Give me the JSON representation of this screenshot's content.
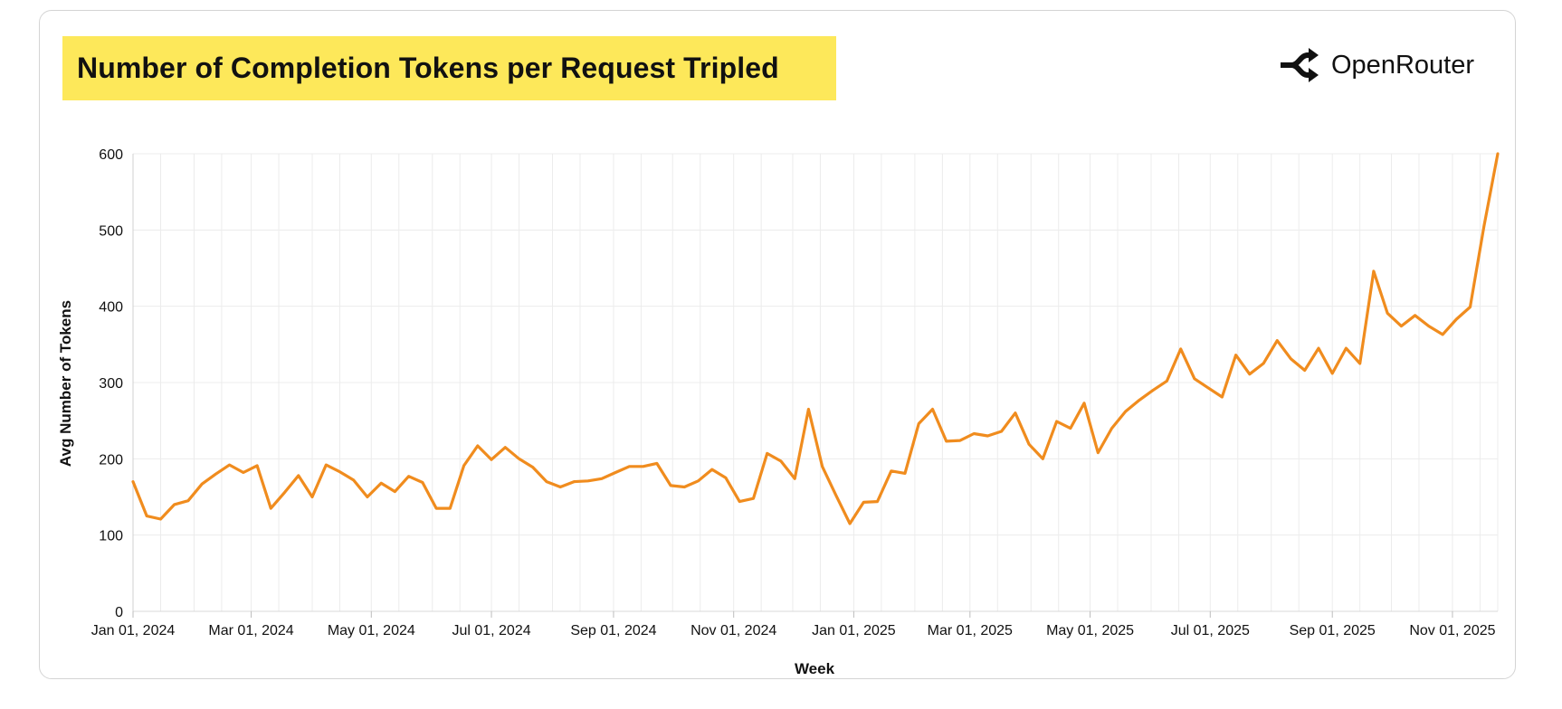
{
  "header": {
    "title": "Number of Completion Tokens per Request Tripled",
    "title_bg": "#fde85a",
    "logo_icon": "openrouter-logo-icon",
    "logo_text": "OpenRouter"
  },
  "chart_data": {
    "type": "line",
    "title": "Number of Completion Tokens per Request Tripled",
    "xlabel": "Week",
    "ylabel": "Avg Number of Tokens",
    "ylim": [
      0,
      600
    ],
    "yticks": [
      0,
      100,
      200,
      300,
      400,
      500,
      600
    ],
    "xticks": [
      "Jan 01, 2024",
      "Mar 01, 2024",
      "May 01, 2024",
      "Jul 01, 2024",
      "Sep 01, 2024",
      "Nov 01, 2024",
      "Jan 01, 2025",
      "Mar 01, 2025",
      "May 01, 2025",
      "Jul 01, 2025",
      "Sep 01, 2025",
      "Nov 01, 2025"
    ],
    "xlim": [
      "2024-01-01",
      "2025-11-24"
    ],
    "grid": true,
    "line_color": "#f08c1e",
    "series": [
      {
        "x": [
          "2024-01-01",
          "2024-01-08",
          "2024-01-15",
          "2024-01-22",
          "2024-01-29",
          "2024-02-05",
          "2024-02-12",
          "2024-02-19",
          "2024-02-26",
          "2024-03-04",
          "2024-03-11",
          "2024-03-18",
          "2024-03-25",
          "2024-04-01",
          "2024-04-08",
          "2024-04-15",
          "2024-04-22",
          "2024-04-29",
          "2024-05-06",
          "2024-05-13",
          "2024-05-20",
          "2024-05-27",
          "2024-06-03",
          "2024-06-10",
          "2024-06-17",
          "2024-06-24",
          "2024-07-01",
          "2024-07-08",
          "2024-07-15",
          "2024-07-22",
          "2024-07-29",
          "2024-08-05",
          "2024-08-12",
          "2024-08-19",
          "2024-08-26",
          "2024-09-02",
          "2024-09-09",
          "2024-09-16",
          "2024-09-23",
          "2024-09-30",
          "2024-10-07",
          "2024-10-14",
          "2024-10-21",
          "2024-10-28",
          "2024-11-04",
          "2024-11-11",
          "2024-11-18",
          "2024-11-25",
          "2024-12-02",
          "2024-12-09",
          "2024-12-16",
          "2024-12-23",
          "2024-12-30",
          "2025-01-06",
          "2025-01-13",
          "2025-01-20",
          "2025-01-27",
          "2025-02-03",
          "2025-02-10",
          "2025-02-17",
          "2025-02-24",
          "2025-03-03",
          "2025-03-10",
          "2025-03-17",
          "2025-03-24",
          "2025-03-31",
          "2025-04-07",
          "2025-04-14",
          "2025-04-21",
          "2025-04-28",
          "2025-05-05",
          "2025-05-12",
          "2025-05-19",
          "2025-05-26",
          "2025-06-02",
          "2025-06-09",
          "2025-06-16",
          "2025-06-23",
          "2025-06-30",
          "2025-07-07",
          "2025-07-14",
          "2025-07-21",
          "2025-07-28",
          "2025-08-04",
          "2025-08-11",
          "2025-08-18",
          "2025-08-25",
          "2025-09-01",
          "2025-09-08",
          "2025-09-15",
          "2025-09-22",
          "2025-09-29",
          "2025-10-06",
          "2025-10-13",
          "2025-10-20",
          "2025-10-27",
          "2025-11-03",
          "2025-11-10",
          "2025-11-17",
          "2025-11-24"
        ],
        "values": [
          170,
          125,
          121,
          140,
          145,
          167,
          180,
          192,
          182,
          191,
          135,
          156,
          178,
          150,
          192,
          183,
          172,
          150,
          168,
          157,
          177,
          169,
          135,
          135,
          191,
          217,
          199,
          215,
          200,
          189,
          170,
          163,
          170,
          171,
          174,
          182,
          190,
          190,
          194,
          165,
          163,
          171,
          186,
          175,
          144,
          148,
          207,
          197,
          174,
          265,
          190,
          152,
          115,
          143,
          144,
          184,
          181,
          246,
          265,
          223,
          224,
          233,
          230,
          236,
          260,
          219,
          200,
          249,
          240,
          273,
          208,
          240,
          262,
          277,
          290,
          302,
          344,
          305,
          293,
          281,
          336,
          311,
          325,
          355,
          331,
          316,
          345,
          312,
          345,
          325,
          446,
          391,
          374,
          388,
          374,
          363,
          383,
          399,
          505,
          600
        ]
      }
    ]
  }
}
